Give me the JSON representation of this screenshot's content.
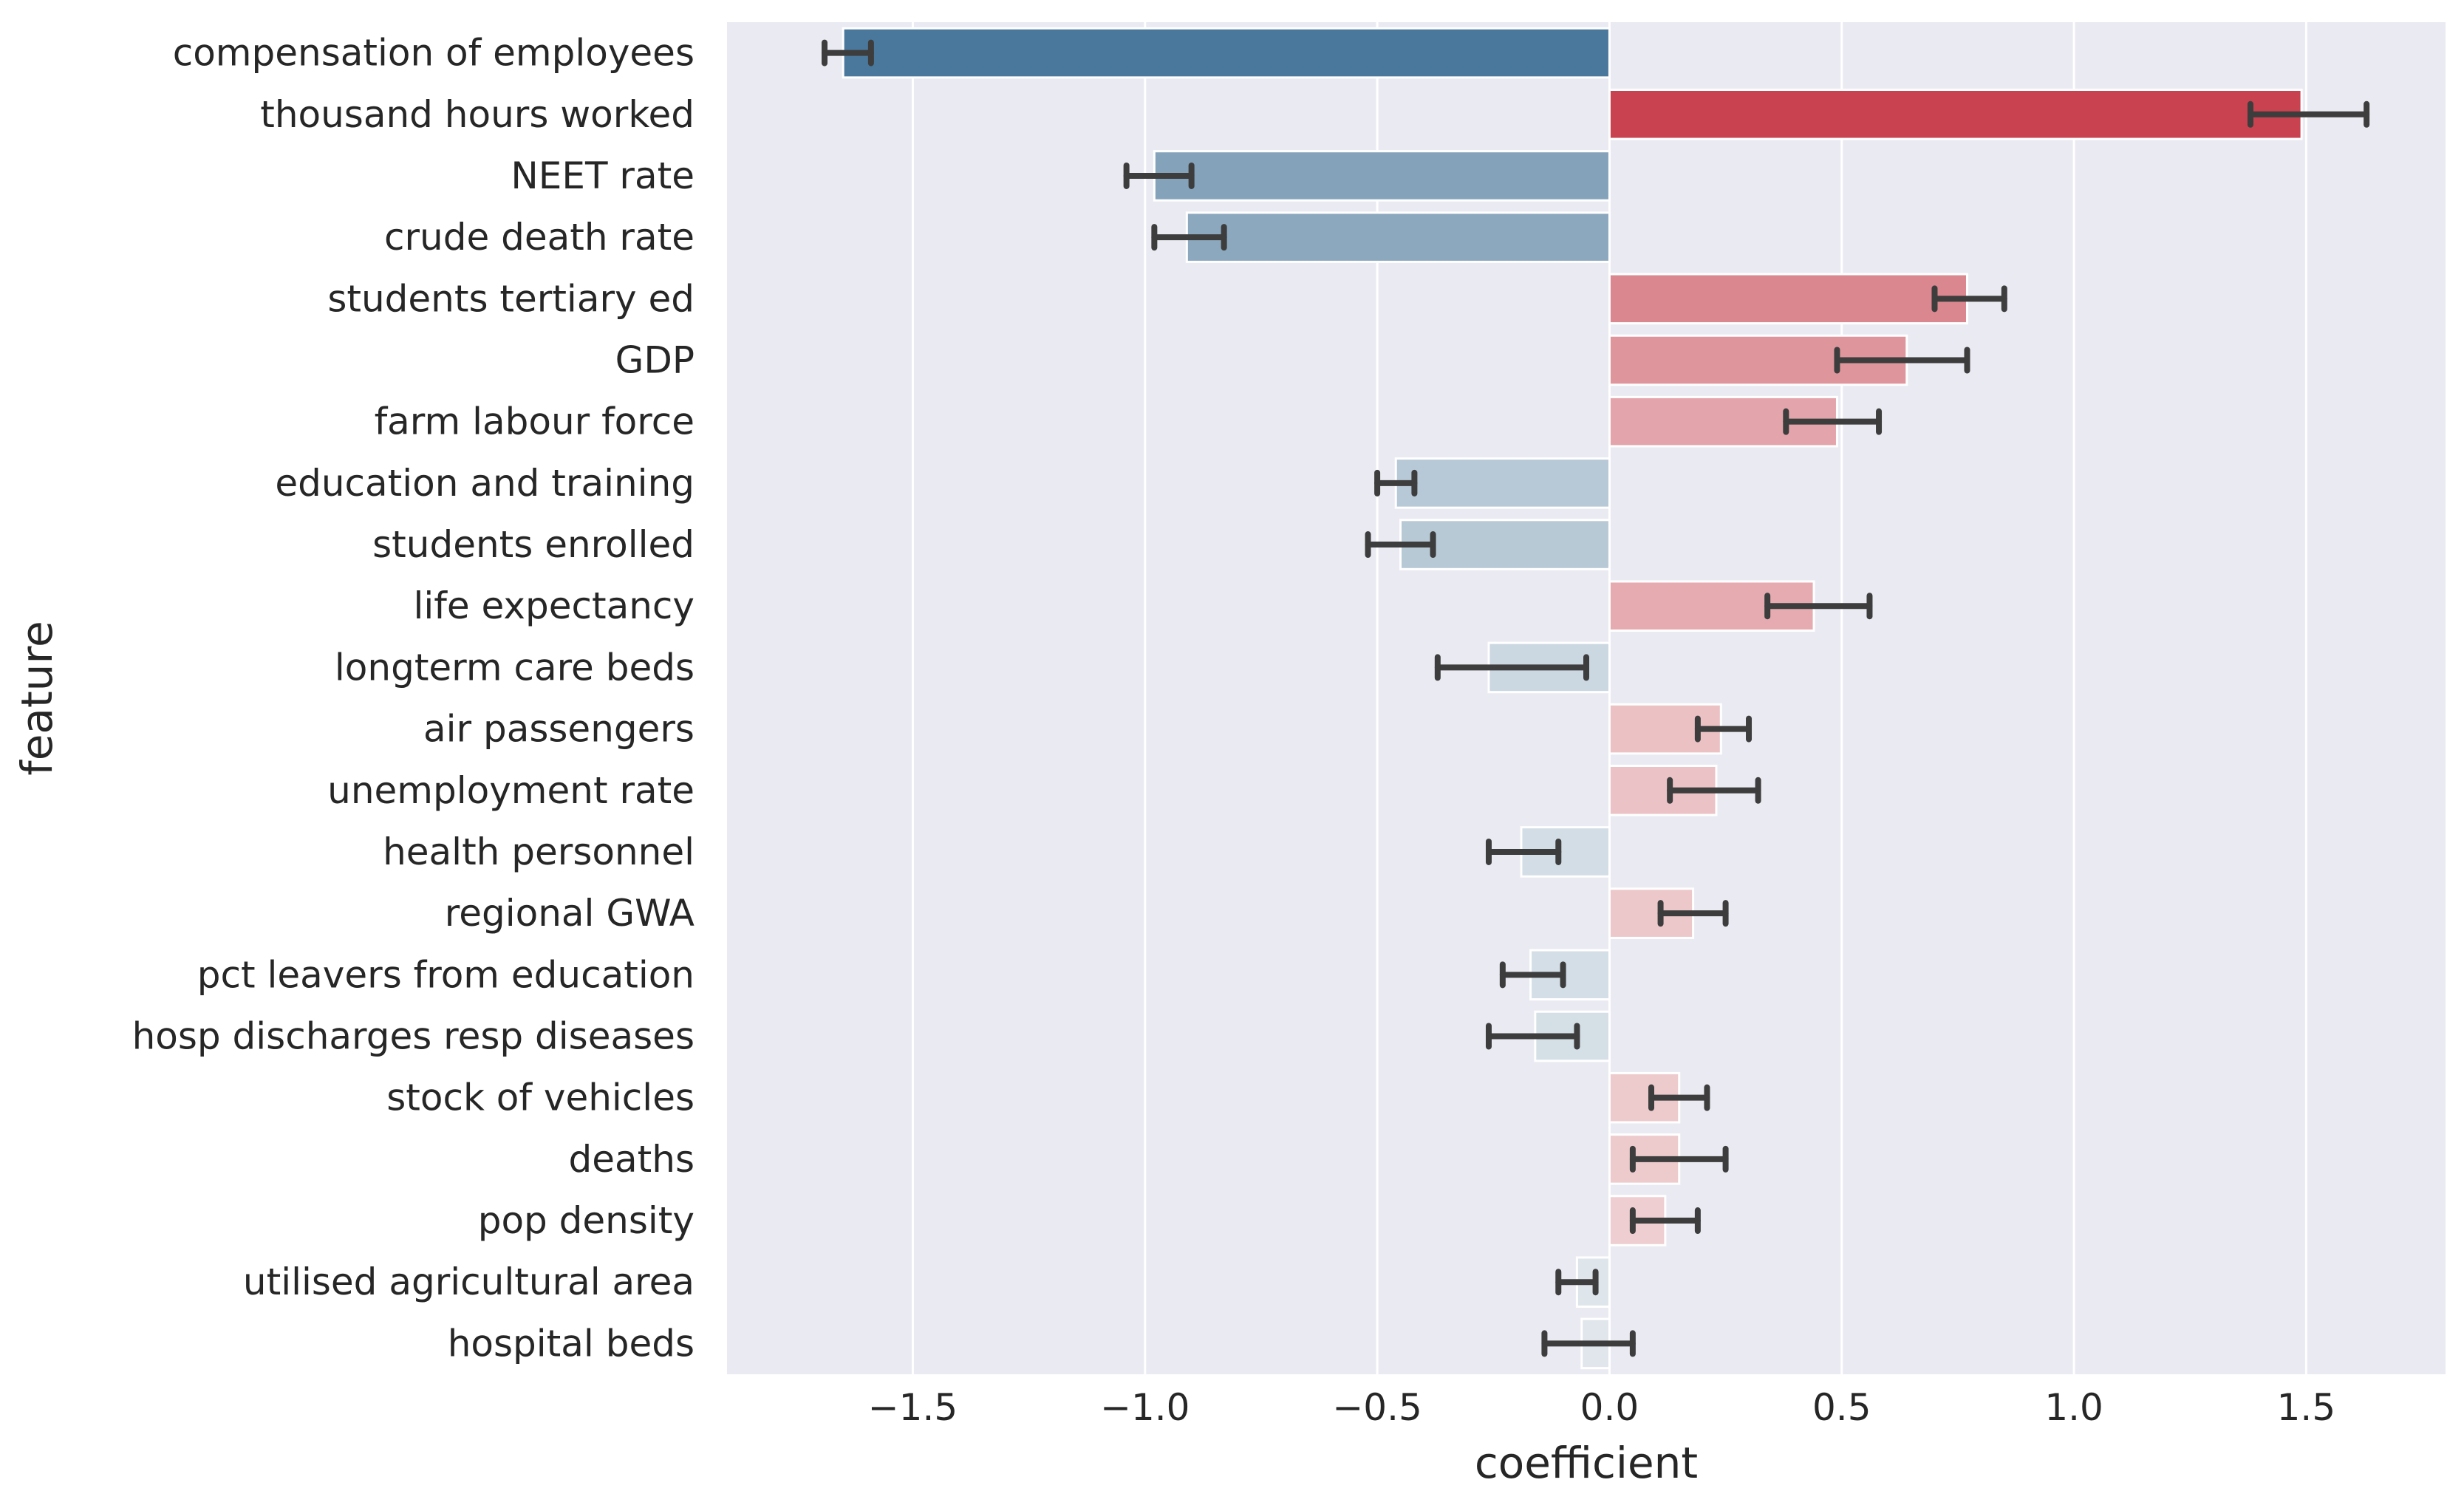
{
  "chart_data": {
    "type": "bar",
    "orientation": "horizontal",
    "xlabel": "coefficient",
    "ylabel": "feature",
    "xlim": [
      -1.9,
      1.8
    ],
    "xticks": [
      -1.5,
      -1.0,
      -0.5,
      0.0,
      0.5,
      1.0,
      1.5
    ],
    "xtick_labels": [
      "−1.5",
      "−1.0",
      "−0.5",
      "0.0",
      "0.5",
      "1.0",
      "1.5"
    ],
    "grid": true,
    "legend": "none",
    "colors": {
      "background": "#eaeaf2",
      "grid": "#ffffff",
      "negative_strong": "#4a789c",
      "negative_light": "#e6ebef",
      "positive_strong": "#c9424f",
      "positive_light": "#f2dcdd",
      "error_bar": "#3d3d3d"
    },
    "categories": [
      "compensation of employees",
      "thousand hours worked",
      "NEET rate",
      "crude death rate",
      "students tertiary ed",
      "GDP",
      "farm labour force",
      "education and training",
      "students enrolled",
      "life expectancy",
      "longterm care beds",
      "air passengers",
      "unemployment rate",
      "health personnel",
      "regional GWA",
      "pct leavers from education",
      "hosp discharges resp diseases",
      "stock of vehicles",
      "deaths",
      "pop density",
      "utilised agricultural area",
      "hospital beds"
    ],
    "values": [
      -1.65,
      1.49,
      -0.98,
      -0.91,
      0.77,
      0.64,
      0.49,
      -0.46,
      -0.45,
      0.44,
      -0.26,
      0.24,
      0.23,
      -0.19,
      0.18,
      -0.17,
      -0.16,
      0.15,
      0.15,
      0.12,
      -0.07,
      -0.06
    ],
    "error_low": [
      -1.69,
      1.38,
      -1.04,
      -0.98,
      0.7,
      0.49,
      0.38,
      -0.5,
      -0.52,
      0.34,
      -0.37,
      0.19,
      0.13,
      -0.26,
      0.11,
      -0.23,
      -0.26,
      0.09,
      0.05,
      0.05,
      -0.11,
      -0.14
    ],
    "error_high": [
      -1.59,
      1.63,
      -0.9,
      -0.83,
      0.85,
      0.77,
      0.58,
      -0.42,
      -0.38,
      0.56,
      -0.05,
      0.3,
      0.32,
      -0.11,
      0.25,
      -0.1,
      -0.07,
      0.21,
      0.25,
      0.19,
      -0.03,
      0.05
    ]
  }
}
